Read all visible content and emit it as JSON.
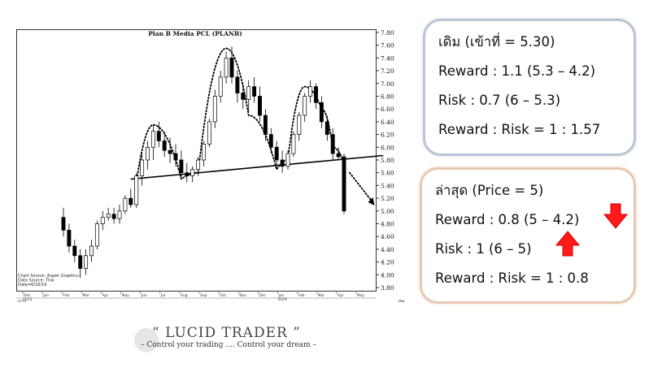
{
  "chart_data": {
    "type": "candlestick",
    "title": "Plan B Media PCL (PLANB)",
    "y_ticks": [
      "7.80",
      "7.60",
      "7.40",
      "7.20",
      "7.00",
      "6.80",
      "6.60",
      "6.40",
      "6.20",
      "6.00",
      "5.80",
      "5.60",
      "5.40",
      "5.20",
      "5.00",
      "4.80",
      "4.60",
      "4.40",
      "4.20",
      "4.00",
      "3.80"
    ],
    "ylim": [
      3.75,
      7.85
    ],
    "x_months": [
      "Dec",
      "Jan",
      "Feb",
      "Mar",
      "Apr",
      "May",
      "Jun",
      "Jul",
      "Aug",
      "Sep",
      "Oct",
      "Nov",
      "Dec",
      "Jan",
      "Feb",
      "Mar",
      "Apr",
      "May"
    ],
    "x_years": [
      "2014",
      "2015",
      "2016"
    ],
    "x_axis_right_label": "Wee",
    "source_lines": [
      "Chart Source: Aspen Graphics",
      "Data Source: Thai",
      "Date=6/16/16"
    ],
    "candles": [
      {
        "o": 4.9,
        "h": 5.05,
        "l": 4.6,
        "c": 4.7
      },
      {
        "o": 4.7,
        "h": 4.8,
        "l": 4.35,
        "c": 4.45
      },
      {
        "o": 4.45,
        "h": 4.55,
        "l": 4.2,
        "c": 4.3
      },
      {
        "o": 4.3,
        "h": 4.4,
        "l": 3.95,
        "c": 4.1
      },
      {
        "o": 4.1,
        "h": 4.4,
        "l": 4.0,
        "c": 4.3
      },
      {
        "o": 4.3,
        "h": 4.55,
        "l": 4.2,
        "c": 4.45
      },
      {
        "o": 4.45,
        "h": 4.85,
        "l": 4.4,
        "c": 4.8
      },
      {
        "o": 4.8,
        "h": 5.0,
        "l": 4.7,
        "c": 4.9
      },
      {
        "o": 4.9,
        "h": 5.05,
        "l": 4.85,
        "c": 4.95
      },
      {
        "o": 4.95,
        "h": 5.05,
        "l": 4.8,
        "c": 4.88
      },
      {
        "o": 4.88,
        "h": 5.1,
        "l": 4.8,
        "c": 5.0
      },
      {
        "o": 5.0,
        "h": 5.25,
        "l": 4.95,
        "c": 5.2
      },
      {
        "o": 5.2,
        "h": 5.35,
        "l": 5.05,
        "c": 5.1
      },
      {
        "o": 5.1,
        "h": 5.6,
        "l": 5.05,
        "c": 5.55
      },
      {
        "o": 5.55,
        "h": 5.9,
        "l": 5.4,
        "c": 5.8
      },
      {
        "o": 5.8,
        "h": 6.1,
        "l": 5.65,
        "c": 6.0
      },
      {
        "o": 6.0,
        "h": 6.35,
        "l": 5.8,
        "c": 6.25
      },
      {
        "o": 6.25,
        "h": 6.4,
        "l": 6.0,
        "c": 6.1
      },
      {
        "o": 6.1,
        "h": 6.25,
        "l": 5.85,
        "c": 5.95
      },
      {
        "o": 5.95,
        "h": 6.15,
        "l": 5.75,
        "c": 5.9
      },
      {
        "o": 5.9,
        "h": 6.05,
        "l": 5.7,
        "c": 5.8
      },
      {
        "o": 5.8,
        "h": 5.95,
        "l": 5.5,
        "c": 5.6
      },
      {
        "o": 5.6,
        "h": 5.75,
        "l": 5.45,
        "c": 5.55
      },
      {
        "o": 5.55,
        "h": 5.7,
        "l": 5.45,
        "c": 5.65
      },
      {
        "o": 5.65,
        "h": 5.85,
        "l": 5.55,
        "c": 5.8
      },
      {
        "o": 5.8,
        "h": 6.1,
        "l": 5.7,
        "c": 6.05
      },
      {
        "o": 6.05,
        "h": 6.45,
        "l": 6.0,
        "c": 6.4
      },
      {
        "o": 6.4,
        "h": 6.9,
        "l": 6.3,
        "c": 6.8
      },
      {
        "o": 6.8,
        "h": 7.2,
        "l": 6.7,
        "c": 7.1
      },
      {
        "o": 7.1,
        "h": 7.5,
        "l": 7.0,
        "c": 7.4
      },
      {
        "o": 7.4,
        "h": 7.58,
        "l": 7.0,
        "c": 7.1
      },
      {
        "o": 7.1,
        "h": 7.2,
        "l": 6.7,
        "c": 6.85
      },
      {
        "o": 6.85,
        "h": 7.0,
        "l": 6.6,
        "c": 6.75
      },
      {
        "o": 6.75,
        "h": 7.05,
        "l": 6.55,
        "c": 6.95
      },
      {
        "o": 6.95,
        "h": 7.1,
        "l": 6.7,
        "c": 6.8
      },
      {
        "o": 6.8,
        "h": 6.95,
        "l": 6.4,
        "c": 6.5
      },
      {
        "o": 6.5,
        "h": 6.6,
        "l": 6.1,
        "c": 6.2
      },
      {
        "o": 6.2,
        "h": 6.3,
        "l": 5.9,
        "c": 6.0
      },
      {
        "o": 6.0,
        "h": 6.1,
        "l": 5.7,
        "c": 5.8
      },
      {
        "o": 5.8,
        "h": 5.95,
        "l": 5.6,
        "c": 5.7
      },
      {
        "o": 5.7,
        "h": 5.95,
        "l": 5.65,
        "c": 5.9
      },
      {
        "o": 5.9,
        "h": 6.25,
        "l": 5.85,
        "c": 6.2
      },
      {
        "o": 6.2,
        "h": 6.55,
        "l": 6.1,
        "c": 6.5
      },
      {
        "o": 6.5,
        "h": 6.85,
        "l": 6.4,
        "c": 6.8
      },
      {
        "o": 6.8,
        "h": 7.05,
        "l": 6.7,
        "c": 6.95
      },
      {
        "o": 6.95,
        "h": 7.0,
        "l": 6.6,
        "c": 6.7
      },
      {
        "o": 6.7,
        "h": 6.8,
        "l": 6.3,
        "c": 6.4
      },
      {
        "o": 6.4,
        "h": 6.5,
        "l": 6.1,
        "c": 6.2
      },
      {
        "o": 6.2,
        "h": 6.3,
        "l": 5.8,
        "c": 5.9
      },
      {
        "o": 5.9,
        "h": 6.0,
        "l": 5.8,
        "c": 5.85
      },
      {
        "o": 5.85,
        "h": 5.9,
        "l": 4.95,
        "c": 5.0
      }
    ],
    "neckline": {
      "from": [
        12,
        5.5
      ],
      "to": [
        57,
        5.87
      ]
    },
    "projection": {
      "from": [
        51,
        5.6
      ],
      "to": [
        55,
        5.15
      ]
    }
  },
  "box_original": {
    "line1": "เดิม (เข้าที่ = 5.30)",
    "line2": "Reward : 1.1 (5.3 – 4.2)",
    "line3": "Risk : 0.7 (6 – 5.3)",
    "line4": "Reward : Risk = 1 : 1.57"
  },
  "box_latest": {
    "line1": "ล่าสุด (Price = 5)",
    "line2": "Reward : 0.8 (5 – 4.2)",
    "line3": "Risk : 1 (6 – 5)",
    "line4": "Reward : Risk = 1 : 0.8"
  },
  "arrows": {
    "reward_direction": "down",
    "risk_direction": "up",
    "color": "#ff1a1a"
  },
  "logo": {
    "title": "“ LUCID TRADER ”",
    "tagline": "– Control your trading .... Control your dream –"
  }
}
